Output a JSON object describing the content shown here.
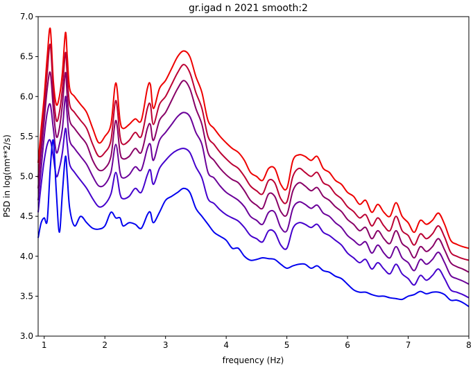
{
  "chart_data": {
    "type": "line",
    "title": "gr.igad n 2021 smooth:2",
    "xlabel": "frequency (Hz)",
    "ylabel": "PSD in log(nm**2/s)",
    "xlim": [
      0.9,
      8
    ],
    "ylim": [
      3.0,
      7.0
    ],
    "xticks": [
      "1",
      "2",
      "3",
      "4",
      "5",
      "6",
      "7",
      "8"
    ],
    "yticks": [
      "3.0",
      "3.5",
      "4.0",
      "4.5",
      "5.0",
      "5.5",
      "6.0",
      "6.5",
      "7.0"
    ],
    "grid": false,
    "legend": "none",
    "x": [
      0.9,
      0.95,
      1.0,
      1.05,
      1.1,
      1.15,
      1.2,
      1.25,
      1.3,
      1.35,
      1.38,
      1.42,
      1.5,
      1.6,
      1.7,
      1.8,
      1.9,
      2.0,
      2.1,
      2.18,
      2.25,
      2.3,
      2.4,
      2.5,
      2.6,
      2.7,
      2.75,
      2.8,
      2.9,
      3.0,
      3.1,
      3.2,
      3.3,
      3.4,
      3.5,
      3.6,
      3.7,
      3.8,
      3.9,
      4.0,
      4.1,
      4.2,
      4.3,
      4.4,
      4.5,
      4.6,
      4.7,
      4.8,
      4.9,
      5.0,
      5.1,
      5.2,
      5.3,
      5.4,
      5.5,
      5.6,
      5.7,
      5.8,
      5.9,
      6.0,
      6.1,
      6.2,
      6.3,
      6.4,
      6.5,
      6.6,
      6.7,
      6.8,
      6.9,
      7.0,
      7.1,
      7.2,
      7.3,
      7.4,
      7.5,
      7.6,
      7.7,
      7.8,
      7.9,
      8.0
    ],
    "series": [
      {
        "color": "#ee0000",
        "values": [
          5.17,
          5.6,
          6.0,
          6.5,
          6.85,
          6.2,
          5.9,
          6.0,
          6.3,
          6.8,
          6.5,
          6.1,
          6.0,
          5.9,
          5.8,
          5.6,
          5.42,
          5.5,
          5.65,
          6.17,
          5.7,
          5.6,
          5.65,
          5.72,
          5.7,
          6.1,
          6.15,
          5.85,
          6.1,
          6.2,
          6.35,
          6.5,
          6.57,
          6.5,
          6.25,
          6.05,
          5.7,
          5.6,
          5.5,
          5.42,
          5.35,
          5.3,
          5.2,
          5.05,
          5.0,
          4.95,
          5.1,
          5.1,
          4.9,
          4.85,
          5.2,
          5.27,
          5.25,
          5.2,
          5.25,
          5.1,
          5.05,
          4.95,
          4.9,
          4.8,
          4.75,
          4.65,
          4.7,
          4.55,
          4.65,
          4.55,
          4.5,
          4.67,
          4.5,
          4.42,
          4.3,
          4.45,
          4.4,
          4.45,
          4.54,
          4.4,
          4.2,
          4.15,
          4.12,
          4.1
        ]
      },
      {
        "color": "#bb0033",
        "values": [
          4.98,
          5.45,
          5.85,
          6.3,
          6.65,
          6.05,
          5.7,
          5.8,
          6.1,
          6.55,
          6.25,
          5.9,
          5.8,
          5.7,
          5.6,
          5.4,
          5.25,
          5.3,
          5.45,
          5.95,
          5.5,
          5.4,
          5.45,
          5.55,
          5.5,
          5.85,
          5.9,
          5.65,
          5.9,
          6.0,
          6.15,
          6.3,
          6.4,
          6.3,
          6.05,
          5.85,
          5.5,
          5.4,
          5.3,
          5.22,
          5.15,
          5.1,
          5.0,
          4.88,
          4.82,
          4.78,
          4.95,
          4.92,
          4.72,
          4.68,
          5.0,
          5.1,
          5.05,
          5.0,
          5.05,
          4.92,
          4.88,
          4.78,
          4.72,
          4.62,
          4.56,
          4.48,
          4.52,
          4.38,
          4.48,
          4.38,
          4.32,
          4.5,
          4.32,
          4.26,
          4.14,
          4.28,
          4.22,
          4.28,
          4.38,
          4.24,
          4.05,
          4.0,
          3.97,
          3.95
        ]
      },
      {
        "color": "#880066",
        "values": [
          4.85,
          5.3,
          5.7,
          6.1,
          6.3,
          5.85,
          5.5,
          5.6,
          5.9,
          6.3,
          6.0,
          5.7,
          5.6,
          5.5,
          5.4,
          5.2,
          5.08,
          5.1,
          5.25,
          5.7,
          5.3,
          5.22,
          5.25,
          5.35,
          5.3,
          5.6,
          5.65,
          5.45,
          5.7,
          5.8,
          5.95,
          6.1,
          6.2,
          6.1,
          5.85,
          5.65,
          5.3,
          5.2,
          5.1,
          5.02,
          4.96,
          4.92,
          4.82,
          4.7,
          4.64,
          4.6,
          4.78,
          4.75,
          4.56,
          4.52,
          4.82,
          4.92,
          4.88,
          4.82,
          4.86,
          4.75,
          4.7,
          4.62,
          4.56,
          4.46,
          4.4,
          4.32,
          4.36,
          4.22,
          4.32,
          4.22,
          4.16,
          4.32,
          4.16,
          4.1,
          3.98,
          4.12,
          4.06,
          4.12,
          4.22,
          4.08,
          3.92,
          3.87,
          3.84,
          3.8
        ]
      },
      {
        "color": "#6a0099",
        "values": [
          4.7,
          5.1,
          5.5,
          5.8,
          5.9,
          5.6,
          5.3,
          5.4,
          5.6,
          6.0,
          5.75,
          5.45,
          5.35,
          5.25,
          5.15,
          5.0,
          4.88,
          4.9,
          5.05,
          5.4,
          5.05,
          4.98,
          5.02,
          5.12,
          5.08,
          5.35,
          5.4,
          5.2,
          5.45,
          5.55,
          5.65,
          5.75,
          5.8,
          5.75,
          5.55,
          5.4,
          5.05,
          4.98,
          4.88,
          4.8,
          4.75,
          4.7,
          4.62,
          4.5,
          4.45,
          4.4,
          4.55,
          4.55,
          4.36,
          4.32,
          4.6,
          4.68,
          4.65,
          4.6,
          4.64,
          4.54,
          4.5,
          4.42,
          4.36,
          4.26,
          4.2,
          4.14,
          4.18,
          4.04,
          4.14,
          4.04,
          3.98,
          4.12,
          3.98,
          3.92,
          3.82,
          3.96,
          3.9,
          3.96,
          4.05,
          3.92,
          3.76,
          3.72,
          3.69,
          3.65
        ]
      },
      {
        "color": "#4400cc",
        "values": [
          4.55,
          4.9,
          5.2,
          5.4,
          5.45,
          5.25,
          5.0,
          5.1,
          5.3,
          5.6,
          5.4,
          5.15,
          5.05,
          4.95,
          4.85,
          4.72,
          4.62,
          4.65,
          4.78,
          5.05,
          4.78,
          4.72,
          4.75,
          4.85,
          4.8,
          5.02,
          5.08,
          4.9,
          5.1,
          5.2,
          5.28,
          5.33,
          5.35,
          5.3,
          5.12,
          4.98,
          4.72,
          4.66,
          4.58,
          4.52,
          4.48,
          4.44,
          4.36,
          4.26,
          4.22,
          4.18,
          4.32,
          4.3,
          4.14,
          4.1,
          4.35,
          4.42,
          4.4,
          4.36,
          4.4,
          4.3,
          4.26,
          4.2,
          4.14,
          4.04,
          3.98,
          3.92,
          3.96,
          3.84,
          3.92,
          3.84,
          3.78,
          3.9,
          3.78,
          3.72,
          3.64,
          3.76,
          3.7,
          3.76,
          3.84,
          3.72,
          3.58,
          3.55,
          3.52,
          3.48
        ]
      },
      {
        "color": "#0000ee",
        "values": [
          4.23,
          4.42,
          4.48,
          4.45,
          5.1,
          5.45,
          4.8,
          4.3,
          4.8,
          5.25,
          5.0,
          4.6,
          4.38,
          4.5,
          4.42,
          4.35,
          4.34,
          4.38,
          4.55,
          4.48,
          4.48,
          4.38,
          4.42,
          4.4,
          4.35,
          4.52,
          4.55,
          4.42,
          4.55,
          4.7,
          4.75,
          4.8,
          4.85,
          4.8,
          4.6,
          4.5,
          4.4,
          4.3,
          4.25,
          4.2,
          4.1,
          4.1,
          4.0,
          3.95,
          3.96,
          3.98,
          3.97,
          3.96,
          3.9,
          3.85,
          3.88,
          3.9,
          3.9,
          3.85,
          3.88,
          3.82,
          3.8,
          3.75,
          3.72,
          3.65,
          3.58,
          3.55,
          3.55,
          3.52,
          3.5,
          3.5,
          3.48,
          3.47,
          3.46,
          3.5,
          3.52,
          3.56,
          3.53,
          3.55,
          3.55,
          3.52,
          3.45,
          3.45,
          3.42,
          3.37
        ]
      }
    ]
  }
}
